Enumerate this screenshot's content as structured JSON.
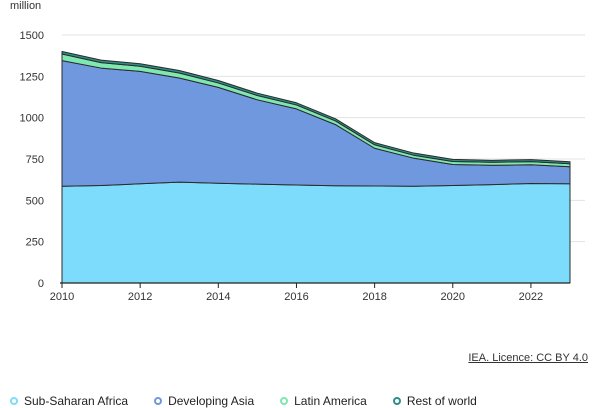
{
  "chart_data": {
    "type": "area",
    "stacked": true,
    "unit_label": "million",
    "x": [
      2010,
      2011,
      2012,
      2013,
      2014,
      2015,
      2016,
      2017,
      2018,
      2019,
      2020,
      2021,
      2022,
      2023
    ],
    "x_ticks": [
      "2010",
      "2012",
      "2014",
      "2016",
      "2018",
      "2020",
      "2022"
    ],
    "y_ticks": [
      "0",
      "250",
      "500",
      "750",
      "1000",
      "1250",
      "1500"
    ],
    "ylim": [
      0,
      1500
    ],
    "grid": true,
    "series": [
      {
        "name": "Sub-Saharan Africa",
        "color": "#7ddcfb",
        "values": [
          585,
          590,
          600,
          610,
          603,
          598,
          593,
          588,
          587,
          585,
          590,
          595,
          602,
          600
        ]
      },
      {
        "name": "Developing Asia",
        "color": "#6f98de",
        "values": [
          760,
          710,
          680,
          630,
          580,
          510,
          460,
          370,
          228,
          170,
          127,
          117,
          113,
          103
        ]
      },
      {
        "name": "Latin America",
        "color": "#7fe8b0",
        "values": [
          40,
          33,
          31,
          30,
          27,
          26,
          24,
          22,
          21,
          18,
          18,
          18,
          19,
          18
        ]
      },
      {
        "name": "Rest of world",
        "color": "#2a8f86",
        "values": [
          15,
          15,
          15,
          15,
          15,
          14,
          13,
          13,
          13,
          13,
          13,
          12,
          12,
          12
        ]
      }
    ],
    "legend_position": "bottom-left"
  },
  "credit_text": "IEA. Licence: CC BY 4.0"
}
